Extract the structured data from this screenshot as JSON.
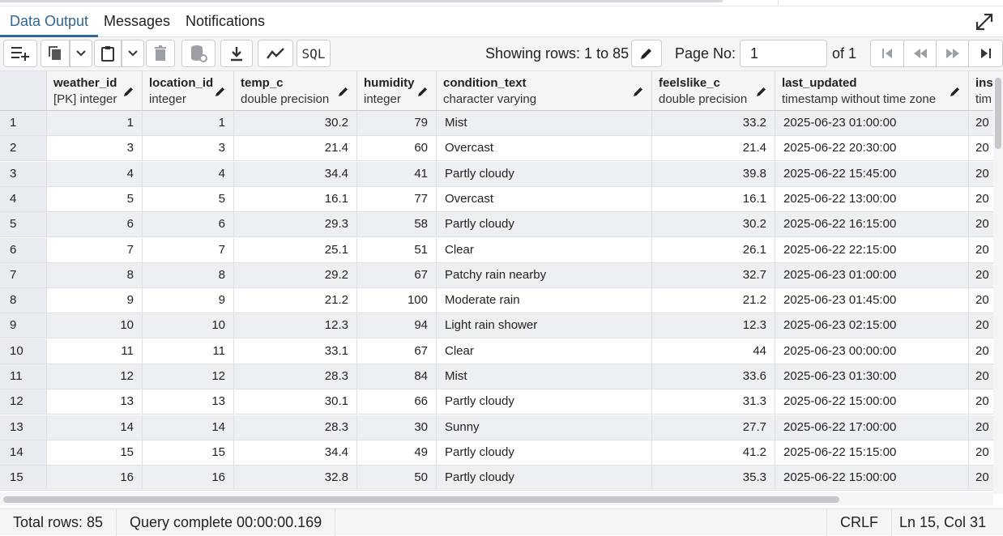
{
  "tabs": [
    {
      "label": "Data Output",
      "active": true
    },
    {
      "label": "Messages",
      "active": false
    },
    {
      "label": "Notifications",
      "active": false
    }
  ],
  "toolbar": {
    "showing_rows": "Showing rows: 1 to 85",
    "page_no_label": "Page No:",
    "page_no_value": "1",
    "of_pages": "of 1",
    "sql_label": "SQL"
  },
  "columns": [
    {
      "name": "weather_id",
      "type": "[PK] integer"
    },
    {
      "name": "location_id",
      "type": "integer"
    },
    {
      "name": "temp_c",
      "type": "double precision"
    },
    {
      "name": "humidity",
      "type": "integer"
    },
    {
      "name": "condition_text",
      "type": "character varying"
    },
    {
      "name": "feelslike_c",
      "type": "double precision"
    },
    {
      "name": "last_updated",
      "type": "timestamp without time zone"
    },
    {
      "name": "ins",
      "type": "tim"
    }
  ],
  "rows": [
    {
      "n": "1",
      "c": [
        "1",
        "1",
        "30.2",
        "79",
        "Mist",
        "33.2",
        "2025-06-23 01:00:00",
        "20"
      ]
    },
    {
      "n": "2",
      "c": [
        "3",
        "3",
        "21.4",
        "60",
        "Overcast",
        "21.4",
        "2025-06-22 20:30:00",
        "20"
      ]
    },
    {
      "n": "3",
      "c": [
        "4",
        "4",
        "34.4",
        "41",
        "Partly cloudy",
        "39.8",
        "2025-06-22 15:45:00",
        "20"
      ]
    },
    {
      "n": "4",
      "c": [
        "5",
        "5",
        "16.1",
        "77",
        "Overcast",
        "16.1",
        "2025-06-22 13:00:00",
        "20"
      ]
    },
    {
      "n": "5",
      "c": [
        "6",
        "6",
        "29.3",
        "58",
        "Partly cloudy",
        "30.2",
        "2025-06-22 16:15:00",
        "20"
      ]
    },
    {
      "n": "6",
      "c": [
        "7",
        "7",
        "25.1",
        "51",
        "Clear",
        "26.1",
        "2025-06-22 22:15:00",
        "20"
      ]
    },
    {
      "n": "7",
      "c": [
        "8",
        "8",
        "29.2",
        "67",
        "Patchy rain nearby",
        "32.7",
        "2025-06-23 01:00:00",
        "20"
      ]
    },
    {
      "n": "8",
      "c": [
        "9",
        "9",
        "21.2",
        "100",
        "Moderate rain",
        "21.2",
        "2025-06-23 01:45:00",
        "20"
      ]
    },
    {
      "n": "9",
      "c": [
        "10",
        "10",
        "12.3",
        "94",
        "Light rain shower",
        "12.3",
        "2025-06-23 02:15:00",
        "20"
      ]
    },
    {
      "n": "10",
      "c": [
        "11",
        "11",
        "33.1",
        "67",
        "Clear",
        "44",
        "2025-06-23 00:00:00",
        "20"
      ]
    },
    {
      "n": "11",
      "c": [
        "12",
        "12",
        "28.3",
        "84",
        "Mist",
        "33.6",
        "2025-06-23 01:30:00",
        "20"
      ]
    },
    {
      "n": "12",
      "c": [
        "13",
        "13",
        "30.1",
        "66",
        "Partly cloudy",
        "31.3",
        "2025-06-22 15:00:00",
        "20"
      ]
    },
    {
      "n": "13",
      "c": [
        "14",
        "14",
        "28.3",
        "30",
        "Sunny",
        "27.7",
        "2025-06-22 17:00:00",
        "20"
      ]
    },
    {
      "n": "14",
      "c": [
        "15",
        "15",
        "34.4",
        "49",
        "Partly cloudy",
        "41.2",
        "2025-06-22 15:15:00",
        "20"
      ]
    },
    {
      "n": "15",
      "c": [
        "16",
        "16",
        "32.8",
        "50",
        "Partly cloudy",
        "35.3",
        "2025-06-22 15:00:00",
        "20"
      ]
    }
  ],
  "status": {
    "total_rows": "Total rows: 85",
    "query": "Query complete 00:00:00.169",
    "line_ending": "CRLF",
    "cursor": "Ln 15, Col 31"
  },
  "colors": {
    "accent": "#326690",
    "header_bg": "#f3f5f7",
    "stripe": "#ecf0f3"
  }
}
